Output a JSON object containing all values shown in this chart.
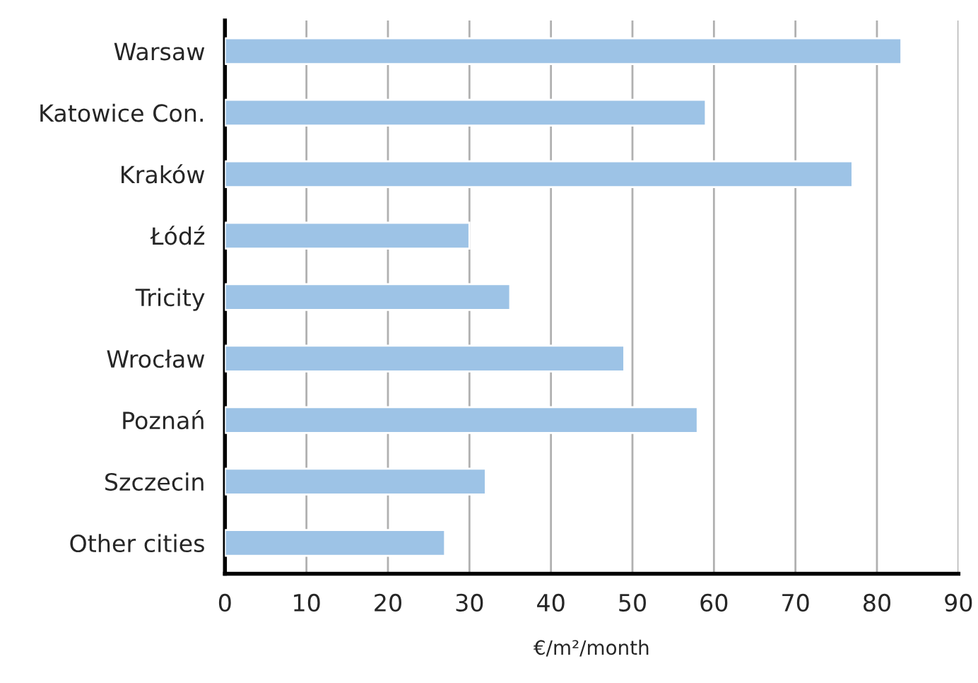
{
  "chart_data": {
    "type": "bar",
    "orientation": "horizontal",
    "xlabel": "€/m²/month",
    "categories": [
      "Warsaw",
      "Katowice Con.",
      "Kraków",
      "Łódź",
      "Tricity",
      "Wrocław",
      "Poznań",
      "Szczecin",
      "Other cities"
    ],
    "values": [
      83,
      59,
      77,
      30,
      35,
      49,
      58,
      32,
      27
    ],
    "color": "#9dc3e6",
    "xlim": [
      0,
      90
    ],
    "xticks": [
      0,
      10,
      20,
      30,
      40,
      50,
      60,
      70,
      80,
      90
    ],
    "grid": "x",
    "legend": false
  }
}
